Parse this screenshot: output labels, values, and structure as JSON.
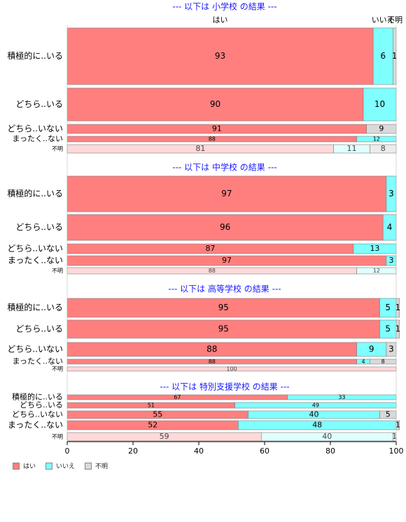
{
  "chart_data": {
    "type": "bar",
    "orientation": "horizontal",
    "stacked": true,
    "xlim": [
      0,
      100
    ],
    "x_ticks": [
      0,
      20,
      40,
      60,
      80,
      100
    ],
    "category_header_labels": [
      "はい",
      "いいえ",
      "不明"
    ],
    "legend": {
      "position": "bottom-left",
      "entries": [
        {
          "name": "はい",
          "color": "#ff7f7f"
        },
        {
          "name": "いいえ",
          "color": "#7fffff"
        },
        {
          "name": "不明",
          "color": "#d9d9d9"
        }
      ]
    },
    "colors": {
      "yes": "#ff7f7f",
      "no": "#7fffff",
      "unknown": "#d9d9d9",
      "yes_light": "#ffd9d9",
      "no_light": "#e0ffff",
      "unknown_light": "#ececec"
    },
    "panels": [
      {
        "title": "--- 以下は 小学校 の結果 ---",
        "rows": [
          {
            "label": "積極的に..いる",
            "values": [
              93,
              6,
              1
            ]
          },
          {
            "label": "どちら..いる",
            "values": [
              90,
              10,
              0
            ]
          },
          {
            "label": "どちら..いない",
            "values": [
              91,
              0,
              9
            ]
          },
          {
            "label": "まったく..ない",
            "values": [
              88,
              12,
              0
            ]
          },
          {
            "label": "不明",
            "values": [
              81,
              11,
              8
            ]
          }
        ]
      },
      {
        "title": "--- 以下は 中学校 の結果 ---",
        "rows": [
          {
            "label": "積極的に..いる",
            "values": [
              97,
              3,
              0
            ]
          },
          {
            "label": "どちら..いる",
            "values": [
              96,
              4,
              0
            ]
          },
          {
            "label": "どちら..いない",
            "values": [
              87,
              13,
              0
            ]
          },
          {
            "label": "まったく..ない",
            "values": [
              97,
              3,
              0
            ]
          },
          {
            "label": "不明",
            "values": [
              88,
              12,
              0
            ]
          }
        ]
      },
      {
        "title": "--- 以下は 高等学校 の結果 ---",
        "rows": [
          {
            "label": "積極的に..いる",
            "values": [
              95,
              5,
              1
            ]
          },
          {
            "label": "どちら..いる",
            "values": [
              95,
              5,
              1
            ]
          },
          {
            "label": "どちら..いない",
            "values": [
              88,
              9,
              3
            ]
          },
          {
            "label": "まったく..ない",
            "values": [
              88,
              4,
              8
            ]
          },
          {
            "label": "不明",
            "values": [
              100,
              0,
              0
            ]
          }
        ]
      },
      {
        "title": "--- 以下は 特別支援学校 の結果 ---",
        "rows": [
          {
            "label": "積極的に..いる",
            "values": [
              67,
              33,
              0
            ]
          },
          {
            "label": "どちら..いる",
            "values": [
              51,
              49,
              0
            ]
          },
          {
            "label": "どちら..いない",
            "values": [
              55,
              40,
              5
            ]
          },
          {
            "label": "まったく..ない",
            "values": [
              52,
              48,
              1
            ]
          },
          {
            "label": "不明",
            "values": [
              59,
              40,
              1
            ]
          }
        ]
      }
    ]
  }
}
